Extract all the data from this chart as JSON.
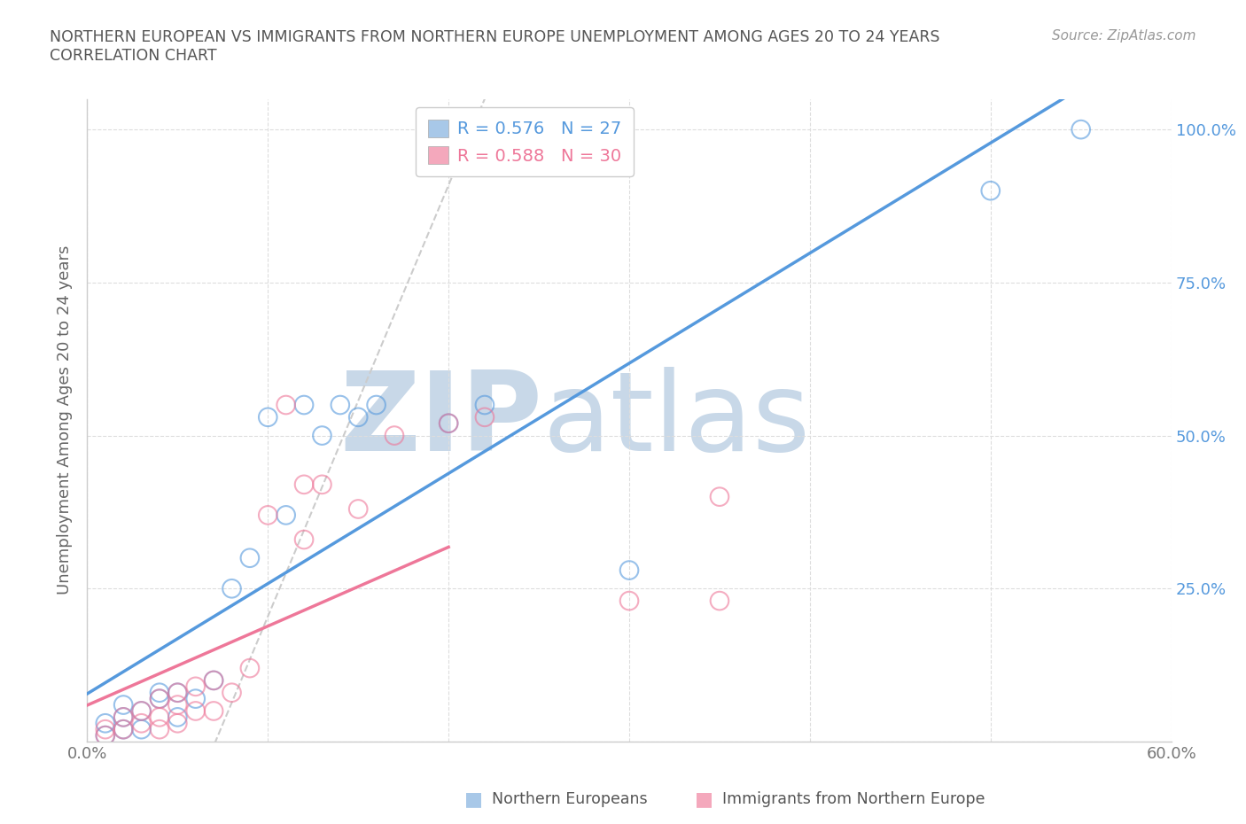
{
  "title_line1": "NORTHERN EUROPEAN VS IMMIGRANTS FROM NORTHERN EUROPE UNEMPLOYMENT AMONG AGES 20 TO 24 YEARS",
  "title_line2": "CORRELATION CHART",
  "source_text": "Source: ZipAtlas.com",
  "ylabel": "Unemployment Among Ages 20 to 24 years",
  "xlim": [
    0.0,
    0.6
  ],
  "ylim": [
    0.0,
    1.05
  ],
  "x_ticks": [
    0.0,
    0.1,
    0.2,
    0.3,
    0.4,
    0.5,
    0.6
  ],
  "x_tick_labels": [
    "0.0%",
    "",
    "",
    "",
    "",
    "",
    "60.0%"
  ],
  "y_ticks": [
    0.0,
    0.25,
    0.5,
    0.75,
    1.0
  ],
  "y_tick_labels_right": [
    "",
    "25.0%",
    "50.0%",
    "75.0%",
    "100.0%"
  ],
  "color_blue": "#a8c8e8",
  "color_pink": "#f4a8bc",
  "color_blue_line": "#5599dd",
  "color_pink_line": "#ee7799",
  "color_dashed_line": "#cccccc",
  "watermark_zip": "ZIP",
  "watermark_atlas": "atlas",
  "watermark_color_zip": "#c8d8e8",
  "watermark_color_atlas": "#c8d8e8",
  "legend_R_blue": "R = 0.576",
  "legend_N_blue": "N = 27",
  "legend_R_pink": "R = 0.588",
  "legend_N_pink": "N = 30",
  "series_blue_x": [
    0.01,
    0.01,
    0.02,
    0.02,
    0.02,
    0.03,
    0.03,
    0.04,
    0.04,
    0.05,
    0.05,
    0.06,
    0.07,
    0.08,
    0.09,
    0.1,
    0.11,
    0.12,
    0.13,
    0.14,
    0.15,
    0.16,
    0.2,
    0.22,
    0.3,
    0.5,
    0.55
  ],
  "series_blue_y": [
    0.01,
    0.03,
    0.02,
    0.04,
    0.06,
    0.02,
    0.05,
    0.07,
    0.08,
    0.04,
    0.08,
    0.07,
    0.1,
    0.25,
    0.3,
    0.53,
    0.37,
    0.55,
    0.5,
    0.55,
    0.53,
    0.55,
    0.52,
    0.55,
    0.28,
    0.9,
    1.0
  ],
  "series_pink_x": [
    0.01,
    0.01,
    0.02,
    0.02,
    0.03,
    0.03,
    0.04,
    0.04,
    0.04,
    0.05,
    0.05,
    0.05,
    0.06,
    0.06,
    0.07,
    0.07,
    0.08,
    0.09,
    0.1,
    0.11,
    0.12,
    0.12,
    0.13,
    0.15,
    0.17,
    0.2,
    0.22,
    0.3,
    0.35,
    0.35
  ],
  "series_pink_y": [
    0.01,
    0.02,
    0.02,
    0.04,
    0.03,
    0.05,
    0.02,
    0.04,
    0.07,
    0.03,
    0.06,
    0.08,
    0.05,
    0.09,
    0.05,
    0.1,
    0.08,
    0.12,
    0.37,
    0.55,
    0.42,
    0.33,
    0.42,
    0.38,
    0.5,
    0.52,
    0.53,
    0.23,
    0.4,
    0.23
  ],
  "background_color": "#ffffff",
  "grid_color": "#dddddd"
}
